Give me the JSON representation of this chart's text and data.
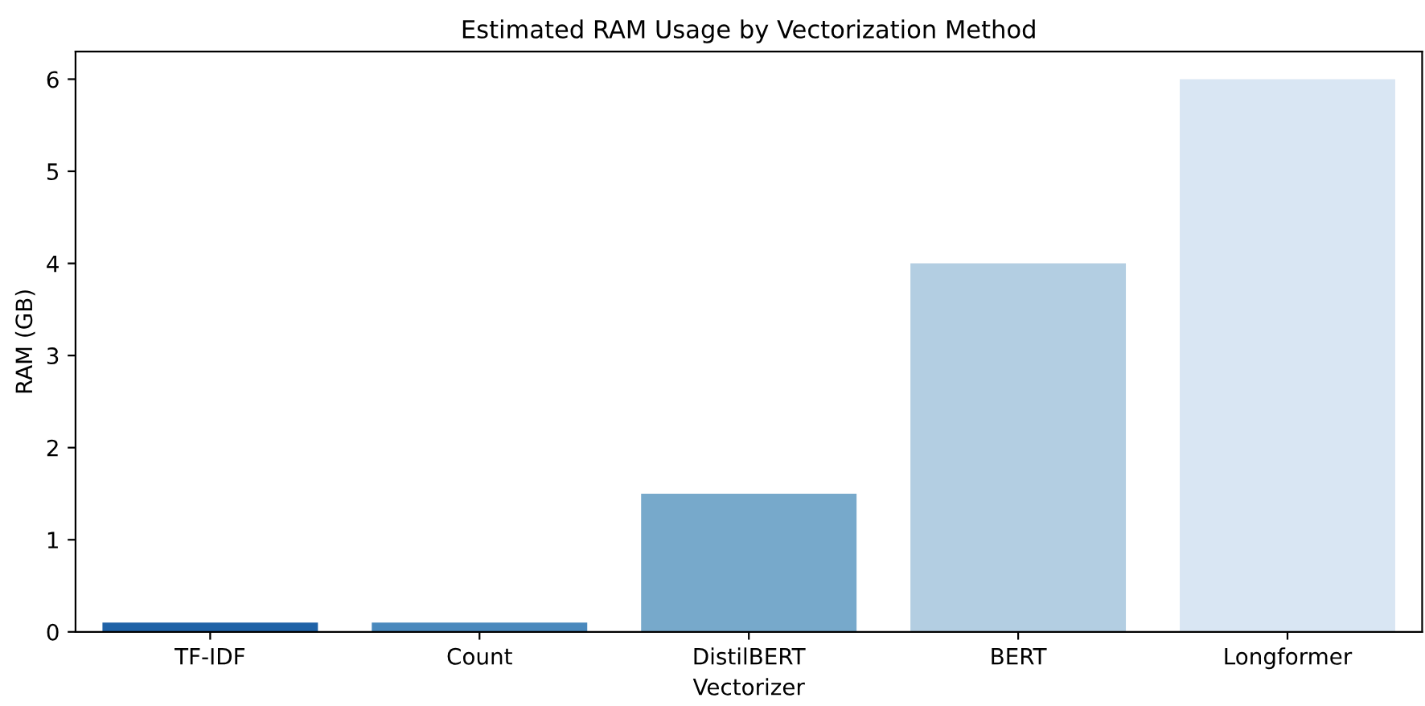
{
  "chart_data": {
    "type": "bar",
    "title": "Estimated RAM Usage by Vectorization Method",
    "xlabel": "Vectorizer",
    "ylabel": "RAM (GB)",
    "categories": [
      "TF-IDF",
      "Count",
      "DistilBERT",
      "BERT",
      "Longformer"
    ],
    "values": [
      0.1,
      0.1,
      1.5,
      4,
      6
    ],
    "colors": [
      "#1f62a7",
      "#4a89bd",
      "#77a9cb",
      "#b3cee2",
      "#d9e6f3"
    ],
    "ylim": [
      0,
      6.3
    ],
    "yticks": [
      0,
      1,
      2,
      3,
      4,
      5,
      6
    ],
    "grid": false
  }
}
